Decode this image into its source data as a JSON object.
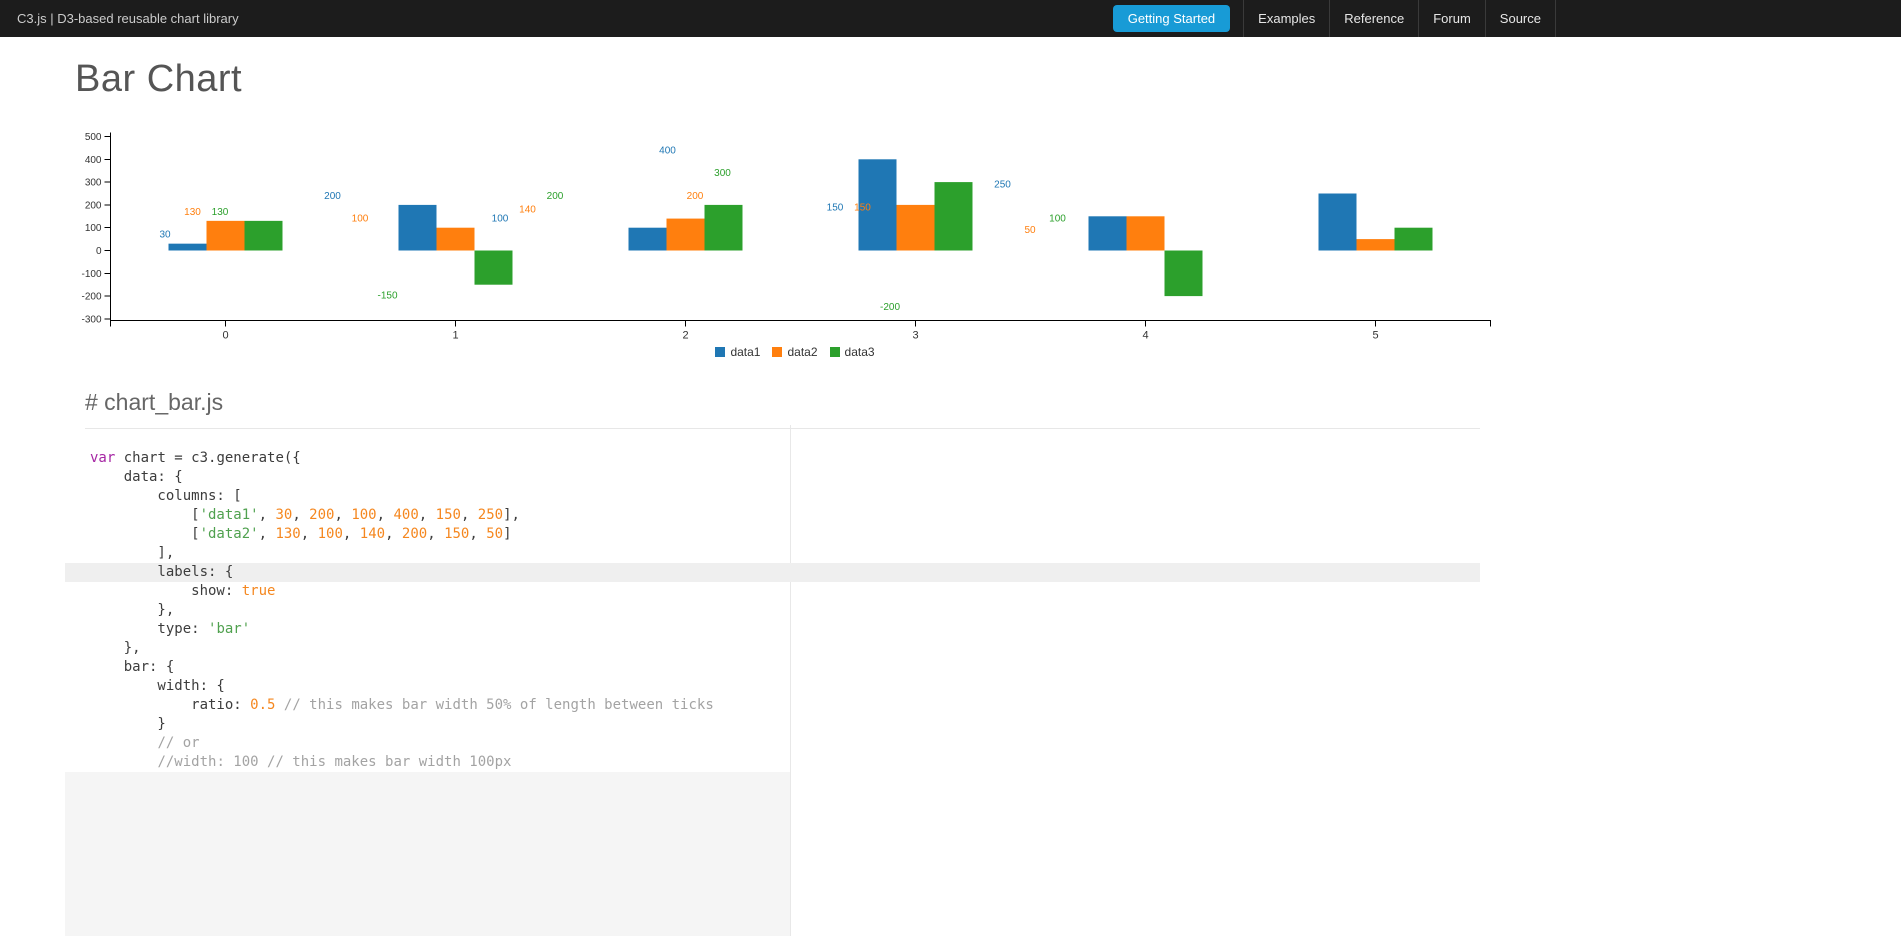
{
  "navbar": {
    "brand": "C3.js | D3-based reusable chart library",
    "accent_color": "#189bd6",
    "items": [
      {
        "label": "Getting Started",
        "active": true
      },
      {
        "label": "Examples",
        "active": false
      },
      {
        "label": "Reference",
        "active": false
      },
      {
        "label": "Forum",
        "active": false
      },
      {
        "label": "Source",
        "active": false
      }
    ]
  },
  "page": {
    "title": "Bar Chart",
    "section_heading": "# chart_bar.js"
  },
  "chart_data": {
    "type": "bar",
    "categories": [
      "0",
      "1",
      "2",
      "3",
      "4",
      "5"
    ],
    "series": [
      {
        "name": "data1",
        "color": "#1f77b4",
        "values": [
          30,
          200,
          100,
          400,
          150,
          250
        ]
      },
      {
        "name": "data2",
        "color": "#ff7f0e",
        "values": [
          130,
          100,
          140,
          200,
          150,
          50
        ]
      },
      {
        "name": "data3",
        "color": "#2ca02c",
        "values": [
          130,
          -150,
          200,
          300,
          -200,
          100
        ]
      }
    ],
    "ylim": [
      -300,
      500
    ],
    "y_ticks": [
      500,
      400,
      300,
      200,
      100,
      0,
      -100,
      -200,
      -300
    ],
    "value_labels_shown": true,
    "legend_position": "bottom",
    "grid": false,
    "bar_width_ratio": 0.5,
    "title": "",
    "xlabel": "",
    "ylabel": ""
  },
  "code": {
    "filename": "chart_bar.js",
    "lines": [
      {
        "hl": false,
        "tokens": [
          {
            "c": "kw",
            "t": "var"
          },
          {
            "c": "pl",
            "t": " chart = c3.generate({"
          }
        ]
      },
      {
        "hl": false,
        "tokens": [
          {
            "c": "pl",
            "t": "    data: {"
          }
        ]
      },
      {
        "hl": false,
        "tokens": [
          {
            "c": "pl",
            "t": "        columns: ["
          }
        ]
      },
      {
        "hl": false,
        "tokens": [
          {
            "c": "pl",
            "t": "            ["
          },
          {
            "c": "str",
            "t": "'data1'"
          },
          {
            "c": "pl",
            "t": ", "
          },
          {
            "c": "num",
            "t": "30"
          },
          {
            "c": "pl",
            "t": ", "
          },
          {
            "c": "num",
            "t": "200"
          },
          {
            "c": "pl",
            "t": ", "
          },
          {
            "c": "num",
            "t": "100"
          },
          {
            "c": "pl",
            "t": ", "
          },
          {
            "c": "num",
            "t": "400"
          },
          {
            "c": "pl",
            "t": ", "
          },
          {
            "c": "num",
            "t": "150"
          },
          {
            "c": "pl",
            "t": ", "
          },
          {
            "c": "num",
            "t": "250"
          },
          {
            "c": "pl",
            "t": "],"
          }
        ]
      },
      {
        "hl": false,
        "tokens": [
          {
            "c": "pl",
            "t": "            ["
          },
          {
            "c": "str",
            "t": "'data2'"
          },
          {
            "c": "pl",
            "t": ", "
          },
          {
            "c": "num",
            "t": "130"
          },
          {
            "c": "pl",
            "t": ", "
          },
          {
            "c": "num",
            "t": "100"
          },
          {
            "c": "pl",
            "t": ", "
          },
          {
            "c": "num",
            "t": "140"
          },
          {
            "c": "pl",
            "t": ", "
          },
          {
            "c": "num",
            "t": "200"
          },
          {
            "c": "pl",
            "t": ", "
          },
          {
            "c": "num",
            "t": "150"
          },
          {
            "c": "pl",
            "t": ", "
          },
          {
            "c": "num",
            "t": "50"
          },
          {
            "c": "pl",
            "t": "]"
          }
        ]
      },
      {
        "hl": false,
        "tokens": [
          {
            "c": "pl",
            "t": "        ],"
          }
        ]
      },
      {
        "hl": true,
        "tokens": [
          {
            "c": "pl",
            "t": "        labels: {"
          }
        ]
      },
      {
        "hl": false,
        "tokens": [
          {
            "c": "pl",
            "t": "            show: "
          },
          {
            "c": "lit",
            "t": "true"
          }
        ]
      },
      {
        "hl": false,
        "tokens": [
          {
            "c": "pl",
            "t": "        },"
          }
        ]
      },
      {
        "hl": false,
        "tokens": [
          {
            "c": "pl",
            "t": "        type: "
          },
          {
            "c": "str",
            "t": "'bar'"
          }
        ]
      },
      {
        "hl": false,
        "tokens": [
          {
            "c": "pl",
            "t": "    },"
          }
        ]
      },
      {
        "hl": false,
        "tokens": [
          {
            "c": "pl",
            "t": "    bar: {"
          }
        ]
      },
      {
        "hl": false,
        "tokens": [
          {
            "c": "pl",
            "t": "        width: {"
          }
        ]
      },
      {
        "hl": false,
        "tokens": [
          {
            "c": "pl",
            "t": "            ratio: "
          },
          {
            "c": "num",
            "t": "0.5"
          },
          {
            "c": "pl",
            "t": " "
          },
          {
            "c": "cmt",
            "t": "// this makes bar width 50% of length between ticks"
          }
        ]
      },
      {
        "hl": false,
        "tokens": [
          {
            "c": "pl",
            "t": "        }"
          }
        ]
      },
      {
        "hl": false,
        "tokens": [
          {
            "c": "pl",
            "t": "        "
          },
          {
            "c": "cmt",
            "t": "// or"
          }
        ]
      },
      {
        "hl": false,
        "tokens": [
          {
            "c": "pl",
            "t": "        "
          },
          {
            "c": "cmt",
            "t": "//width: 100 // this makes bar width 100px"
          }
        ]
      }
    ]
  }
}
